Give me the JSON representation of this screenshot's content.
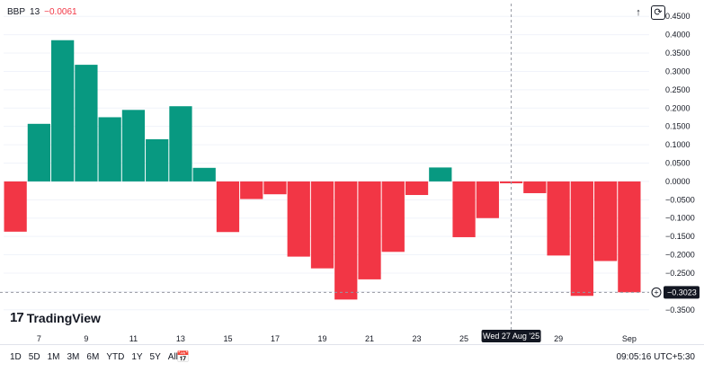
{
  "legend": {
    "symbol": "BBP",
    "period": "13",
    "change": "−0.0061"
  },
  "brand": {
    "logo_mark": "17",
    "name": "TradingView"
  },
  "time_ranges": [
    "1D",
    "5D",
    "1M",
    "3M",
    "6M",
    "YTD",
    "1Y",
    "5Y",
    "All"
  ],
  "clock": "09:05:16 UTC+5:30",
  "crosshair": {
    "date_label": "Wed 27 Aug '25"
  },
  "price_label": "−0.3023",
  "icons": {
    "scroll_up": "arrow-up-icon",
    "reset": "refresh-icon",
    "calendar": "calendar-icon",
    "goto": "plus-circle-icon"
  },
  "colors": {
    "positive": "#089981",
    "negative": "#f23645",
    "grid": "#f0f3fa",
    "crosshair": "#9598a1"
  },
  "chart_data": {
    "type": "bar",
    "title": "BBP 13",
    "y_axis_position": "right",
    "ylim": [
      -0.375,
      0.475
    ],
    "y_ticks": [
      "0.4500",
      "0.4000",
      "0.3500",
      "0.3000",
      "0.2500",
      "0.2000",
      "0.1500",
      "0.1000",
      "0.0500",
      "0.0000",
      "−0.0500",
      "−0.1000",
      "−0.1500",
      "−0.2000",
      "−0.2500",
      "−0.3000",
      "−0.3500"
    ],
    "x_tick_labels": [
      {
        "label": "7",
        "index": 1
      },
      {
        "label": "9",
        "index": 3
      },
      {
        "label": "11",
        "index": 5
      },
      {
        "label": "13",
        "index": 7
      },
      {
        "label": "15",
        "index": 9
      },
      {
        "label": "17",
        "index": 11
      },
      {
        "label": "19",
        "index": 13
      },
      {
        "label": "21",
        "index": 15
      },
      {
        "label": "23",
        "index": 17
      },
      {
        "label": "25",
        "index": 19
      },
      {
        "label": "29",
        "index": 23
      },
      {
        "label": "Sep",
        "index": 26
      }
    ],
    "values": [
      -0.137,
      0.157,
      0.385,
      0.318,
      0.175,
      0.195,
      0.115,
      0.205,
      0.037,
      -0.138,
      -0.048,
      -0.035,
      -0.205,
      -0.237,
      -0.322,
      -0.267,
      -0.192,
      -0.037,
      0.038,
      -0.152,
      -0.1,
      -0.005,
      -0.032,
      -0.202,
      -0.312,
      -0.217,
      -0.3023
    ]
  }
}
